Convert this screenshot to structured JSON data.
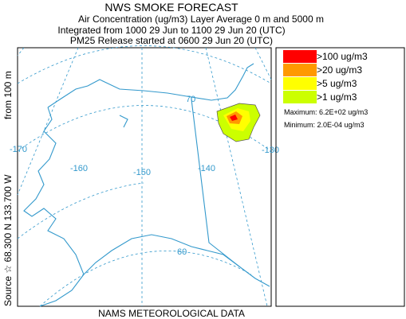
{
  "header": {
    "title": "NWS SMOKE FORECAST",
    "lines": [
      "Air Concentration (ug/m3) Layer Average    0 m and  5000 m",
      "Integrated from 1000 29 Jun to 1100 29 Jun 20 (UTC)",
      "PM25 Release started at 0600 29 Jun 20 (UTC)"
    ]
  },
  "map": {
    "lon_labels": [
      "-170",
      "-160",
      "-150",
      "-140",
      "-130"
    ],
    "lat_labels": [
      "70",
      "60"
    ]
  },
  "legend": {
    "entries": [
      {
        "label": ">100 ug/m3",
        "color": "#ff0000"
      },
      {
        "label": ">20 ug/m3",
        "color": "#ff9900"
      },
      {
        "label": ">5 ug/m3",
        "color": "#ffff00"
      },
      {
        "label": ">1 ug/m3",
        "color": "#ccff00"
      }
    ],
    "maximum": "Maximum: 6.2E+02 ug/m3",
    "minimum": "Minimum: 2.0E-04 ug/m3"
  },
  "source_label": [
    "Source ☆ 68.300 N 133.700 W",
    "from   100 m"
  ],
  "footer": "NAMS METEOROLOGICAL DATA"
}
